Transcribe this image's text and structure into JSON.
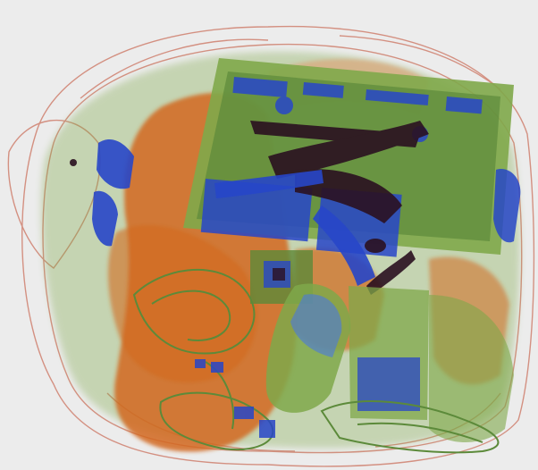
{
  "image": {
    "subject": "xray-baggage-scan",
    "background_color": "#ececec",
    "palette": {
      "organic_orange": "#d2691e",
      "organic_orange_light": "#e39463",
      "mixed_green": "#7fa84a",
      "mixed_green_dark": "#5c8a3a",
      "metal_blue": "#2746c8",
      "metal_blue_light": "#4a78e0",
      "dense_dark": "#2a1020",
      "outline_red": "#c0452a"
    }
  }
}
